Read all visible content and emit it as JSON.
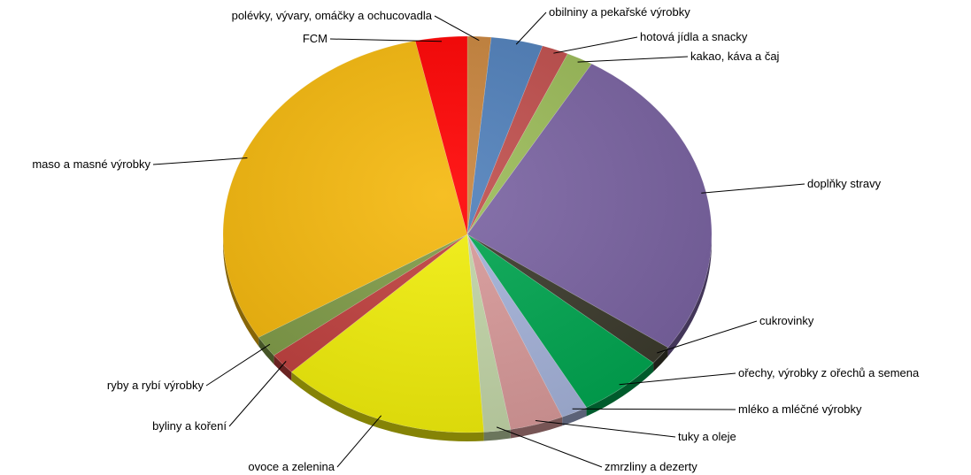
{
  "chart_data": {
    "type": "pie",
    "title": "",
    "start_angle_deg": -90,
    "series": [
      {
        "values": [
          1.6,
          3.5,
          1.8,
          1.8,
          26.8,
          1.6,
          5.8,
          1.8,
          3.6,
          1.8,
          14.2,
          1.8,
          1.8,
          31.0,
          3.5
        ],
        "colors": [
          "#c8843c",
          "#4f7fba",
          "#c04e4c",
          "#9bbb58",
          "#7a63a2",
          "#3b3a2c",
          "#00a650",
          "#a5b3da",
          "#d99a9a",
          "#c3d6a8",
          "#f2ef0a",
          "#c0403e",
          "#7f9b47",
          "#f5b80c",
          "#ff0000"
        ]
      }
    ],
    "categories": [
      "polévky, vývary, omáčky a ochucovadla",
      "obilniny a pekařské výrobky",
      "hotová jídla a snacky",
      "kakao, káva a čaj",
      "doplňky stravy",
      "cukrovinky",
      "ořechy, výrobky z ořechů a semena",
      "mléko a mléčné výrobky",
      "tuky a oleje",
      "zmrzliny  a dezerty",
      "ovoce a zelenina",
      "byliny a koření",
      "ryby a rybí výrobky",
      "maso a masné výrobky",
      "FCM"
    ]
  }
}
